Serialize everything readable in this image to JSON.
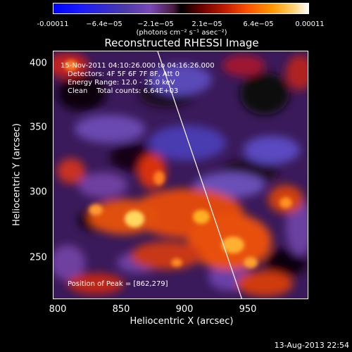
{
  "colorbar": {
    "ticks": [
      "-0.00011",
      "−6.4e−05",
      "−2.1e−05",
      "2.1e−05",
      "6.4e−05",
      "0.00011"
    ],
    "unit": "(photons cm⁻² s⁻¹ asec⁻²)"
  },
  "title": "Reconstructed RHESSI Image",
  "info": {
    "time_range": "15-Nov-2011 04:10:26.000 to 04:16:26.000",
    "detectors": "Detectors: 4F 5F 6F 7F 8F, Att 0",
    "energy_range": "Energy Range: 12.0 - 25.0 keV",
    "algorithm": "Clean    Total counts: 6.64E+03",
    "peak": "Position of Peak = [862,279]"
  },
  "axes": {
    "xlabel": "Heliocentric X (arcsec)",
    "ylabel": "Heliocentric Y (arcsec)",
    "xticks": [
      "800",
      "850",
      "900",
      "950"
    ],
    "yticks": [
      "400",
      "350",
      "300",
      "250"
    ]
  },
  "footer": "13-Aug-2013 22:54",
  "colors": {
    "limb": "#ffffff",
    "background": "#000000",
    "text": "#ffffff"
  }
}
